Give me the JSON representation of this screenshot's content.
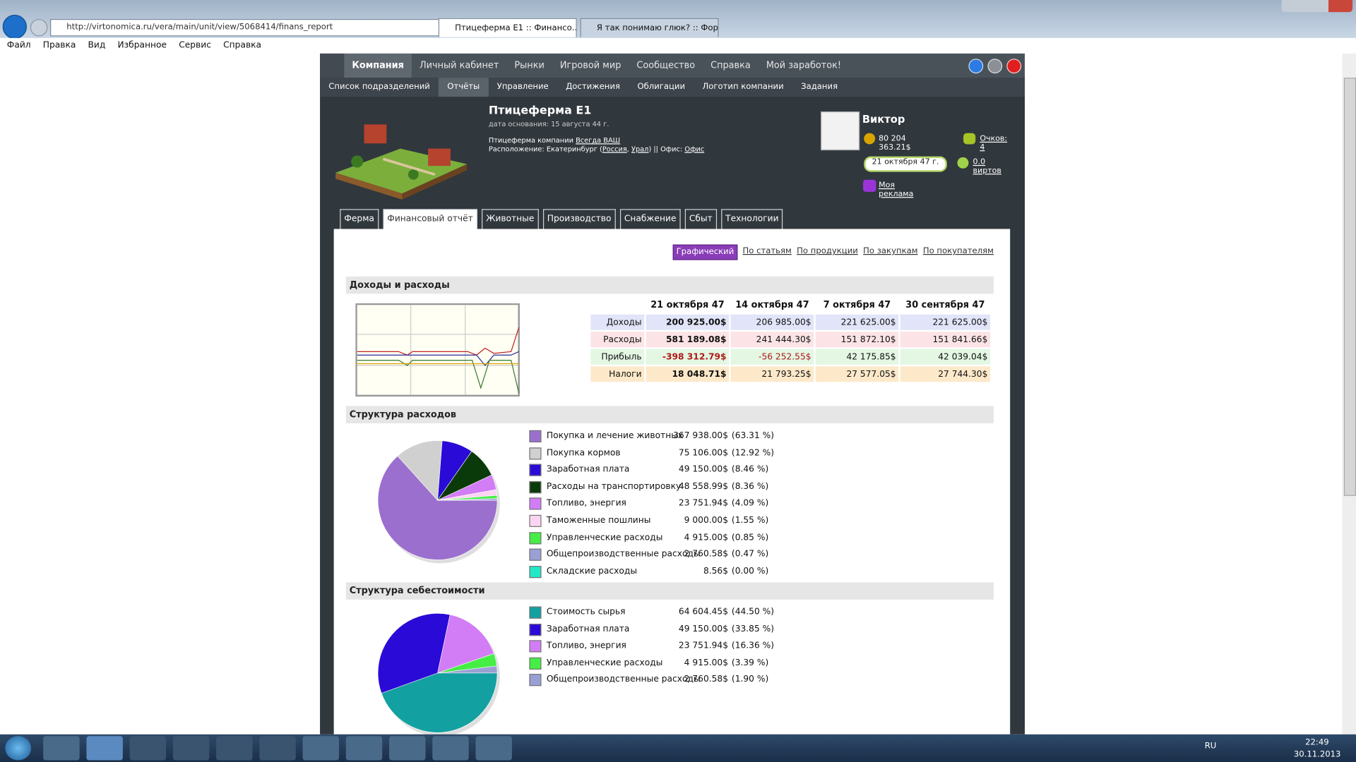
{
  "browser": {
    "url": "http://virtonomica.ru/vera/main/unit/view/5068414/finans_report",
    "tabs": [
      {
        "label": "Птицеферма E1 :: Финансо...",
        "active": true
      },
      {
        "label": "Я так понимаю глюк? :: Фору...",
        "active": false
      }
    ],
    "menu": [
      "Файл",
      "Правка",
      "Вид",
      "Избранное",
      "Сервис",
      "Справка"
    ]
  },
  "nav": {
    "main": [
      {
        "label": "Компания",
        "active": true
      },
      {
        "label": "Личный кабинет",
        "active": false
      },
      {
        "label": "Рынки",
        "active": false
      },
      {
        "label": "Игровой мир",
        "active": false
      },
      {
        "label": "Сообщество",
        "active": false
      },
      {
        "label": "Справка",
        "active": false
      },
      {
        "label": "Мой заработок!",
        "active": false
      }
    ],
    "sub": [
      {
        "label": "Список подразделений",
        "active": false
      },
      {
        "label": "Отчёты",
        "active": true
      },
      {
        "label": "Управление",
        "active": false
      },
      {
        "label": "Достижения",
        "active": false
      },
      {
        "label": "Облигации",
        "active": false
      },
      {
        "label": "Логотип компании",
        "active": false
      },
      {
        "label": "Задания",
        "active": false
      }
    ]
  },
  "unit": {
    "title": "Птицеферма E1",
    "founded": "дата основания: 15 августа 44 г.",
    "company": [
      {
        "text": "Птицеферма компании ",
        "link": false
      },
      {
        "text": "Всегда ВАШ",
        "link": true
      }
    ],
    "location": [
      {
        "text": "Расположение: Екатеринбург (",
        "link": false
      },
      {
        "text": "Россия",
        "link": true
      },
      {
        "text": ", ",
        "link": false
      },
      {
        "text": "Урал",
        "link": true
      },
      {
        "text": ") || Офис: ",
        "link": false
      },
      {
        "text": "Офис",
        "link": true
      }
    ]
  },
  "user": {
    "name": "Виктор",
    "money": "80 204 363.21$",
    "points": "Очков: 4",
    "date": "21 октября 47 г.",
    "virts": "0.0 виртов",
    "ads": "Моя реклама"
  },
  "tabs": [
    {
      "label": "Ферма",
      "active": false
    },
    {
      "label": "Финансовый отчёт",
      "active": true
    },
    {
      "label": "Животные",
      "active": false
    },
    {
      "label": "Производство",
      "active": false
    },
    {
      "label": "Снабжение",
      "active": false
    },
    {
      "label": "Сбыт",
      "active": false
    },
    {
      "label": "Технологии",
      "active": false
    }
  ],
  "views": [
    {
      "label": "Графический",
      "active": true
    },
    {
      "label": "По статьям",
      "active": false
    },
    {
      "label": "По продукции",
      "active": false
    },
    {
      "label": "По закупкам",
      "active": false
    },
    {
      "label": "По покупателям",
      "active": false
    }
  ],
  "income": {
    "title": "Доходы и расходы",
    "columns": [
      "21 октября 47",
      "14 октября 47",
      "7 октября 47",
      "30 сентября 47"
    ],
    "rows": [
      {
        "label": "Доходы",
        "color": "#e2e5f9",
        "cells": [
          "200 925.00$",
          "206 985.00$",
          "221 625.00$",
          "221 625.00$"
        ]
      },
      {
        "label": "Расходы",
        "color": "#fce3e6",
        "cells": [
          "581 189.08$",
          "241 444.30$",
          "151 872.10$",
          "151 841.66$"
        ]
      },
      {
        "label": "Прибыль",
        "color": "#e3f7e3",
        "cells": [
          "-398 312.79$",
          "-56 252.55$",
          "42 175.85$",
          "42 039.04$"
        ]
      },
      {
        "label": "Налоги",
        "color": "#fde9c9",
        "cells": [
          "18 048.71$",
          "21 793.25$",
          "27 577.05$",
          "27 744.30$"
        ]
      }
    ]
  },
  "expenses": {
    "title": "Структура расходов",
    "items": [
      {
        "name": "Покупка и лечение животных",
        "color": "#9b6fce",
        "amount": "367 938.00$",
        "percent": 63.31,
        "percent_label": "(63.31 %)"
      },
      {
        "name": "Покупка кормов",
        "color": "#d0d0d0",
        "amount": "75 106.00$",
        "percent": 12.92,
        "percent_label": "(12.92 %)"
      },
      {
        "name": "Заработная плата",
        "color": "#2a0ad6",
        "amount": "49 150.00$",
        "percent": 8.46,
        "percent_label": "(8.46 %)"
      },
      {
        "name": "Расходы на транспортировку",
        "color": "#0a3a0a",
        "amount": "48 558.99$",
        "percent": 8.36,
        "percent_label": "(8.36 %)"
      },
      {
        "name": "Топливо, энергия",
        "color": "#d27cf5",
        "amount": "23 751.94$",
        "percent": 4.09,
        "percent_label": "(4.09 %)"
      },
      {
        "name": "Таможенные пошлины",
        "color": "#fbd4f3",
        "amount": "9 000.00$",
        "percent": 1.55,
        "percent_label": "(1.55 %)"
      },
      {
        "name": "Управленческие расходы",
        "color": "#44ee44",
        "amount": "4 915.00$",
        "percent": 0.85,
        "percent_label": "(0.85 %)"
      },
      {
        "name": "Общепроизводственные расходы",
        "color": "#9aa0d4",
        "amount": "2 760.58$",
        "percent": 0.47,
        "percent_label": "(0.47 %)"
      },
      {
        "name": "Складские расходы",
        "color": "#22e8c8",
        "amount": "8.56$",
        "percent": 0.0,
        "percent_label": "(0.00 %)"
      }
    ]
  },
  "cost": {
    "title": "Структура себестоимости",
    "items": [
      {
        "name": "Стоимость сырья",
        "color": "#13a0a0",
        "amount": "64 604.45$",
        "percent": 44.5,
        "percent_label": "(44.50 %)"
      },
      {
        "name": "Заработная плата",
        "color": "#2a0ad6",
        "amount": "49 150.00$",
        "percent": 33.85,
        "percent_label": "(33.85 %)"
      },
      {
        "name": "Топливо, энергия",
        "color": "#d27cf5",
        "amount": "23 751.94$",
        "percent": 16.36,
        "percent_label": "(16.36 %)"
      },
      {
        "name": "Управленческие расходы",
        "color": "#44ee44",
        "amount": "4 915.00$",
        "percent": 3.39,
        "percent_label": "(3.39 %)"
      },
      {
        "name": "Общепроизводственные расходы",
        "color": "#9aa0d4",
        "amount": "2 760.58$",
        "percent": 1.9,
        "percent_label": "(1.90 %)"
      }
    ]
  },
  "taskbar": {
    "lang": "RU",
    "time": "22:49",
    "date": "30.11.2013"
  }
}
